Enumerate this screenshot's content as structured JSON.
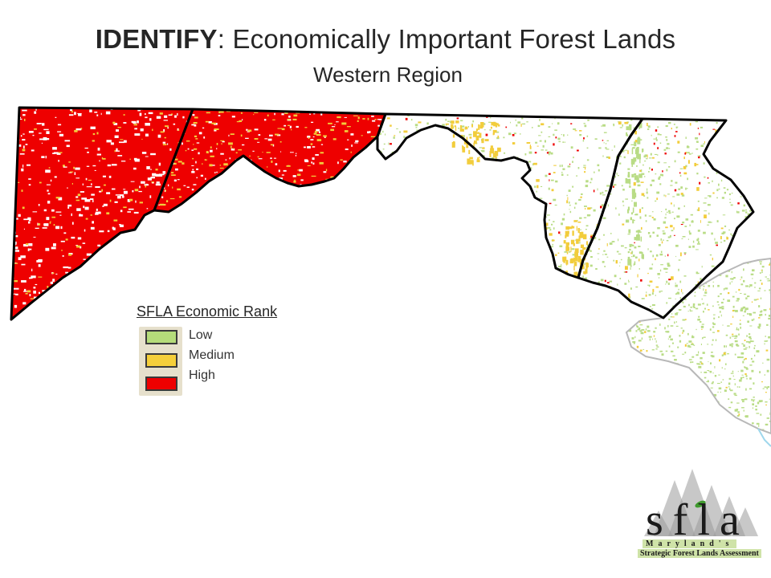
{
  "title": {
    "bold": "IDENTIFY",
    "rest": ":  Economically Important Forest Lands"
  },
  "subtitle": "Western Region",
  "legend": {
    "title": "SFLA Economic Rank",
    "items": [
      {
        "label": "Low",
        "color": "#b5dc7a"
      },
      {
        "label": "Medium",
        "color": "#f5cf3a"
      },
      {
        "label": "High",
        "color": "#ee0000"
      }
    ]
  },
  "map_colors": {
    "high": "#ee0000",
    "medium": "#f2cd3c",
    "low": "#b9dc86",
    "border": "#000000",
    "neighbor_border": "#b8b8b8",
    "water": "#9fd7ec"
  },
  "logo": {
    "letters": "sfla",
    "line1": "Maryland's",
    "line2": "Strategic Forest Lands Assessment",
    "leaf_color": "#3f9a2e",
    "tree_color": "#9a9a9a"
  }
}
